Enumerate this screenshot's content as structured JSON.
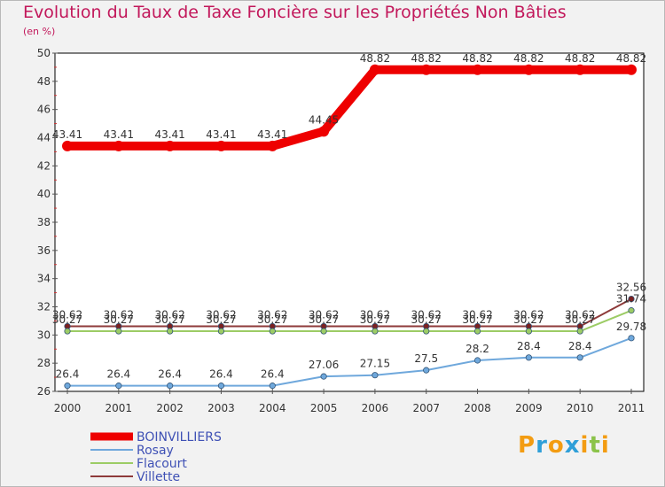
{
  "title": "Evolution du Taux de Taxe Foncière sur les Propriétés Non Bâties",
  "unit": "(en %)",
  "logo": {
    "letters": [
      "P",
      "r",
      "o",
      "x",
      "i",
      "t",
      "i"
    ],
    "colors": [
      "#f39c12",
      "#2f9fd8",
      "#f39c12",
      "#2f9fd8",
      "#f39c12",
      "#8bc34a",
      "#f39c12"
    ]
  },
  "chart_data": {
    "type": "line",
    "title": "Evolution du Taux de Taxe Foncière sur les Propriétés Non Bâties",
    "ylabel": "(en %)",
    "x": [
      "2000",
      "2001",
      "2002",
      "2003",
      "2004",
      "2005",
      "2006",
      "2007",
      "2008",
      "2009",
      "2010",
      "2011"
    ],
    "ylim": [
      26,
      50
    ],
    "yticks": [
      26,
      28,
      30,
      32,
      34,
      36,
      38,
      40,
      42,
      44,
      46,
      48,
      50
    ],
    "grid": false,
    "legend": "bottom-left",
    "series": [
      {
        "name": "BOINVILLIERS",
        "color": "#ee0000",
        "values": [
          43.41,
          43.41,
          43.41,
          43.41,
          43.41,
          44.45,
          48.82,
          48.82,
          48.82,
          48.82,
          48.82,
          48.82
        ],
        "labels": [
          "43.41",
          "43.41",
          "43.41",
          "43.41",
          "43.41",
          "44.45",
          "48.82",
          "48.82",
          "48.82",
          "48.82",
          "48.82",
          "48.82"
        ]
      },
      {
        "name": "Rosay",
        "color": "#6fa8dc",
        "values": [
          26.4,
          26.4,
          26.4,
          26.4,
          26.4,
          27.06,
          27.15,
          27.5,
          28.2,
          28.4,
          28.4,
          29.78
        ],
        "labels": [
          "26.4",
          "26.4",
          "26.4",
          "26.4",
          "26.4",
          "27.06",
          "27.15",
          "27.5",
          "28.2",
          "28.4",
          "28.4",
          "29.78"
        ]
      },
      {
        "name": "Flacourt",
        "color": "#9ccc65",
        "values": [
          30.27,
          30.27,
          30.27,
          30.27,
          30.27,
          30.27,
          30.27,
          30.27,
          30.27,
          30.27,
          30.27,
          31.74
        ],
        "labels": [
          "30.27",
          "30.27",
          "30.27",
          "30.27",
          "30.27",
          "30.27",
          "30.27",
          "30.27",
          "30.27",
          "30.27",
          "30.27",
          "31.74"
        ]
      },
      {
        "name": "Villette",
        "color": "#8e3a3a",
        "values": [
          30.62,
          30.62,
          30.62,
          30.62,
          30.62,
          30.62,
          30.62,
          30.62,
          30.62,
          30.62,
          30.62,
          32.56
        ],
        "labels": [
          "30.62",
          "30.62",
          "30.62",
          "30.62",
          "30.62",
          "30.62",
          "30.62",
          "30.62",
          "30.62",
          "30.62",
          "30.62",
          "32.56"
        ]
      }
    ]
  }
}
